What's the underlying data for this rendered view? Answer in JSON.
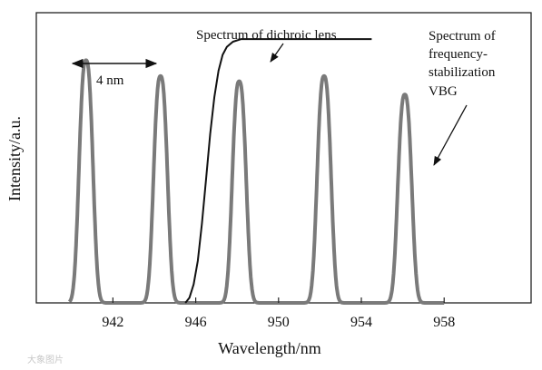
{
  "chart_data": {
    "type": "line",
    "xlabel": "Wavelength/nm",
    "ylabel": "Intensity/a.u.",
    "xlim": [
      938.3,
      962.2
    ],
    "ylim": [
      0,
      1.1
    ],
    "x_ticks": [
      942,
      946,
      950,
      954,
      958
    ],
    "grid": false,
    "legend": "none",
    "series": [
      {
        "name": "",
        "style": "gray-thick",
        "color": "#7a7a7a",
        "peaks": [
          {
            "center": 940.7,
            "height": 0.92
          },
          {
            "center": 944.3,
            "height": 0.86
          },
          {
            "center": 948.1,
            "height": 0.84
          },
          {
            "center": 952.2,
            "height": 0.86
          },
          {
            "center": 956.1,
            "height": 0.79
          }
        ],
        "peak_width": 0.32
      },
      {
        "name": "",
        "style": "black-thin",
        "color": "#111111",
        "x": [
          945.5,
          945.7,
          945.9,
          946.1,
          946.3,
          946.5,
          946.7,
          946.9,
          947.1,
          947.3,
          947.5,
          947.8,
          948.2,
          948.8,
          949.5,
          954.5
        ],
        "y": [
          0.0,
          0.02,
          0.07,
          0.16,
          0.3,
          0.47,
          0.64,
          0.78,
          0.88,
          0.94,
          0.97,
          0.99,
          1.0,
          1.0,
          1.0,
          1.0
        ]
      }
    ],
    "annotations": {
      "dichroic": "Spectrum of dichroic lens",
      "vbg": [
        "Spectrum of",
        "frequency-",
        "stabilization",
        "VBG"
      ],
      "spacing": "4 nm"
    }
  },
  "watermark": "大象图片"
}
